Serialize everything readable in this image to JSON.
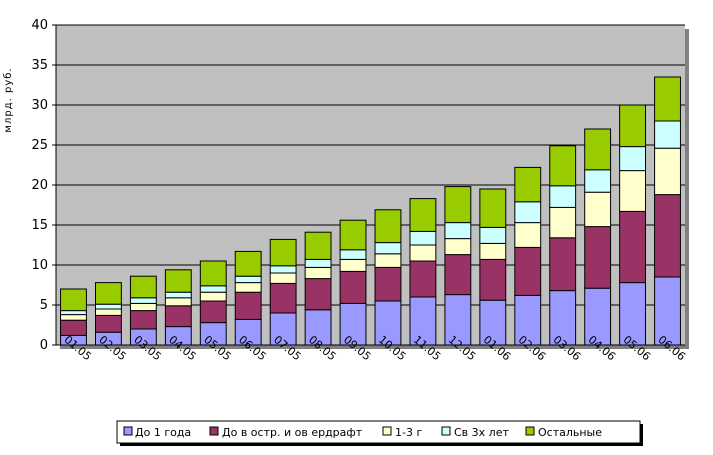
{
  "chart_data": {
    "type": "bar",
    "stacked": true,
    "ylabel": "млрд. руб.",
    "ylim": [
      0,
      40
    ],
    "yticks": [
      0,
      5,
      10,
      15,
      20,
      25,
      30,
      35,
      40
    ],
    "grid": true,
    "legend_position": "bottom",
    "plot_background": "#c0c0c0",
    "categories": [
      "01.05",
      "02.05",
      "03.05",
      "04.05",
      "05.05",
      "06.05",
      "07.05",
      "08.05",
      "09.05",
      "10.05",
      "11.05",
      "12.05",
      "01.06",
      "02.06",
      "03.06",
      "04.06",
      "05.06",
      "06.06"
    ],
    "tick_labels": [
      "01.05",
      "02.05",
      "03.05",
      "04.05",
      "05.05",
      "06.05",
      "07.05",
      "08.05",
      "09.05",
      "10.05",
      "11.05",
      "12.05",
      "01.06",
      "02.06",
      "03.06",
      "04.06",
      "05.06",
      "06.06"
    ],
    "series": [
      {
        "name": "До 1 года",
        "color": "#9999ff",
        "values": [
          1.2,
          1.6,
          2.0,
          2.3,
          2.8,
          3.2,
          4.0,
          4.4,
          5.2,
          5.5,
          6.0,
          6.3,
          5.6,
          6.2,
          6.8,
          7.1,
          7.8,
          8.5
        ]
      },
      {
        "name": "До в остр. и ов ердрафт",
        "color": "#993366",
        "values": [
          1.9,
          2.1,
          2.3,
          2.6,
          2.7,
          3.4,
          3.7,
          3.9,
          4.0,
          4.2,
          4.5,
          5.0,
          5.1,
          6.0,
          6.6,
          7.7,
          8.9,
          10.3
        ]
      },
      {
        "name": "1-3 г",
        "color": "#ffffcc",
        "values": [
          0.7,
          0.8,
          0.9,
          1.0,
          1.1,
          1.2,
          1.3,
          1.4,
          1.5,
          1.7,
          2.0,
          2.0,
          2.0,
          3.1,
          3.8,
          4.3,
          5.1,
          5.8
        ]
      },
      {
        "name": "Св 3х лет",
        "color": "#ccffff",
        "values": [
          0.5,
          0.6,
          0.7,
          0.7,
          0.8,
          0.8,
          0.9,
          1.0,
          1.2,
          1.4,
          1.7,
          2.0,
          2.0,
          2.6,
          2.7,
          2.8,
          3.0,
          3.4
        ]
      },
      {
        "name": "Остальные",
        "color": "#99cc00",
        "values": [
          2.7,
          2.7,
          2.7,
          2.8,
          3.1,
          3.1,
          3.3,
          3.4,
          3.7,
          4.1,
          4.1,
          4.5,
          4.8,
          4.3,
          5.0,
          5.1,
          5.2,
          5.5
        ]
      }
    ]
  }
}
